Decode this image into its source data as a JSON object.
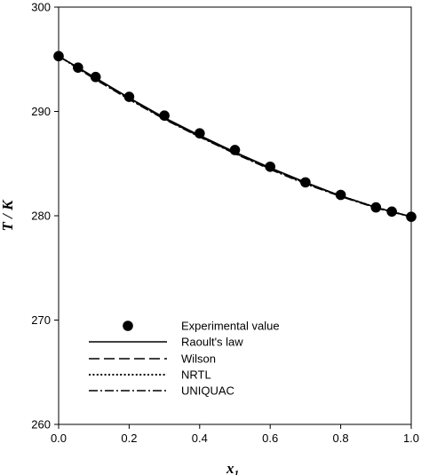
{
  "chart_data": {
    "type": "scatter",
    "xlabel": "x",
    "xlabel_subscript": "1",
    "ylabel": "T / K",
    "xlim": [
      0.0,
      1.0
    ],
    "ylim": [
      260,
      300
    ],
    "x_ticks": [
      "0.0",
      "0.2",
      "0.4",
      "0.6",
      "0.8",
      "1.0"
    ],
    "y_ticks": [
      "260",
      "270",
      "280",
      "290",
      "300"
    ],
    "grid": false,
    "legend_position": "lower-left",
    "series": [
      {
        "name": "Experimental value",
        "style": "markers",
        "x": [
          0.0,
          0.055,
          0.105,
          0.2,
          0.3,
          0.4,
          0.5,
          0.6,
          0.7,
          0.8,
          0.9,
          0.945,
          1.0
        ],
        "y": [
          295.3,
          294.2,
          293.3,
          291.4,
          289.6,
          287.9,
          286.3,
          284.7,
          283.2,
          282.0,
          280.8,
          280.4,
          279.9
        ]
      },
      {
        "name": "Raoult's law",
        "style": "solid",
        "x": [
          0.0,
          0.1,
          0.2,
          0.3,
          0.4,
          0.5,
          0.6,
          0.7,
          0.8,
          0.9,
          1.0
        ],
        "y": [
          295.3,
          293.3,
          291.3,
          289.4,
          287.7,
          286.1,
          284.6,
          283.2,
          281.9,
          280.8,
          279.9
        ]
      },
      {
        "name": "Wilson",
        "style": "dashed",
        "x": [
          0.0,
          0.1,
          0.2,
          0.3,
          0.4,
          0.5,
          0.6,
          0.7,
          0.8,
          0.9,
          1.0
        ],
        "y": [
          295.3,
          293.2,
          291.2,
          289.3,
          287.6,
          286.0,
          284.5,
          283.1,
          281.9,
          280.8,
          279.9
        ]
      },
      {
        "name": "NRTL",
        "style": "dotted",
        "x": [
          0.0,
          0.1,
          0.2,
          0.3,
          0.4,
          0.5,
          0.6,
          0.7,
          0.8,
          0.9,
          1.0
        ],
        "y": [
          295.3,
          293.25,
          291.25,
          289.35,
          287.65,
          286.05,
          284.55,
          283.15,
          281.9,
          280.8,
          279.9
        ]
      },
      {
        "name": "UNIQUAC",
        "style": "dashdot",
        "x": [
          0.0,
          0.1,
          0.2,
          0.3,
          0.4,
          0.5,
          0.6,
          0.7,
          0.8,
          0.9,
          1.0
        ],
        "y": [
          295.3,
          293.15,
          291.15,
          289.25,
          287.55,
          285.95,
          284.45,
          283.05,
          281.85,
          280.75,
          279.9
        ]
      }
    ]
  }
}
